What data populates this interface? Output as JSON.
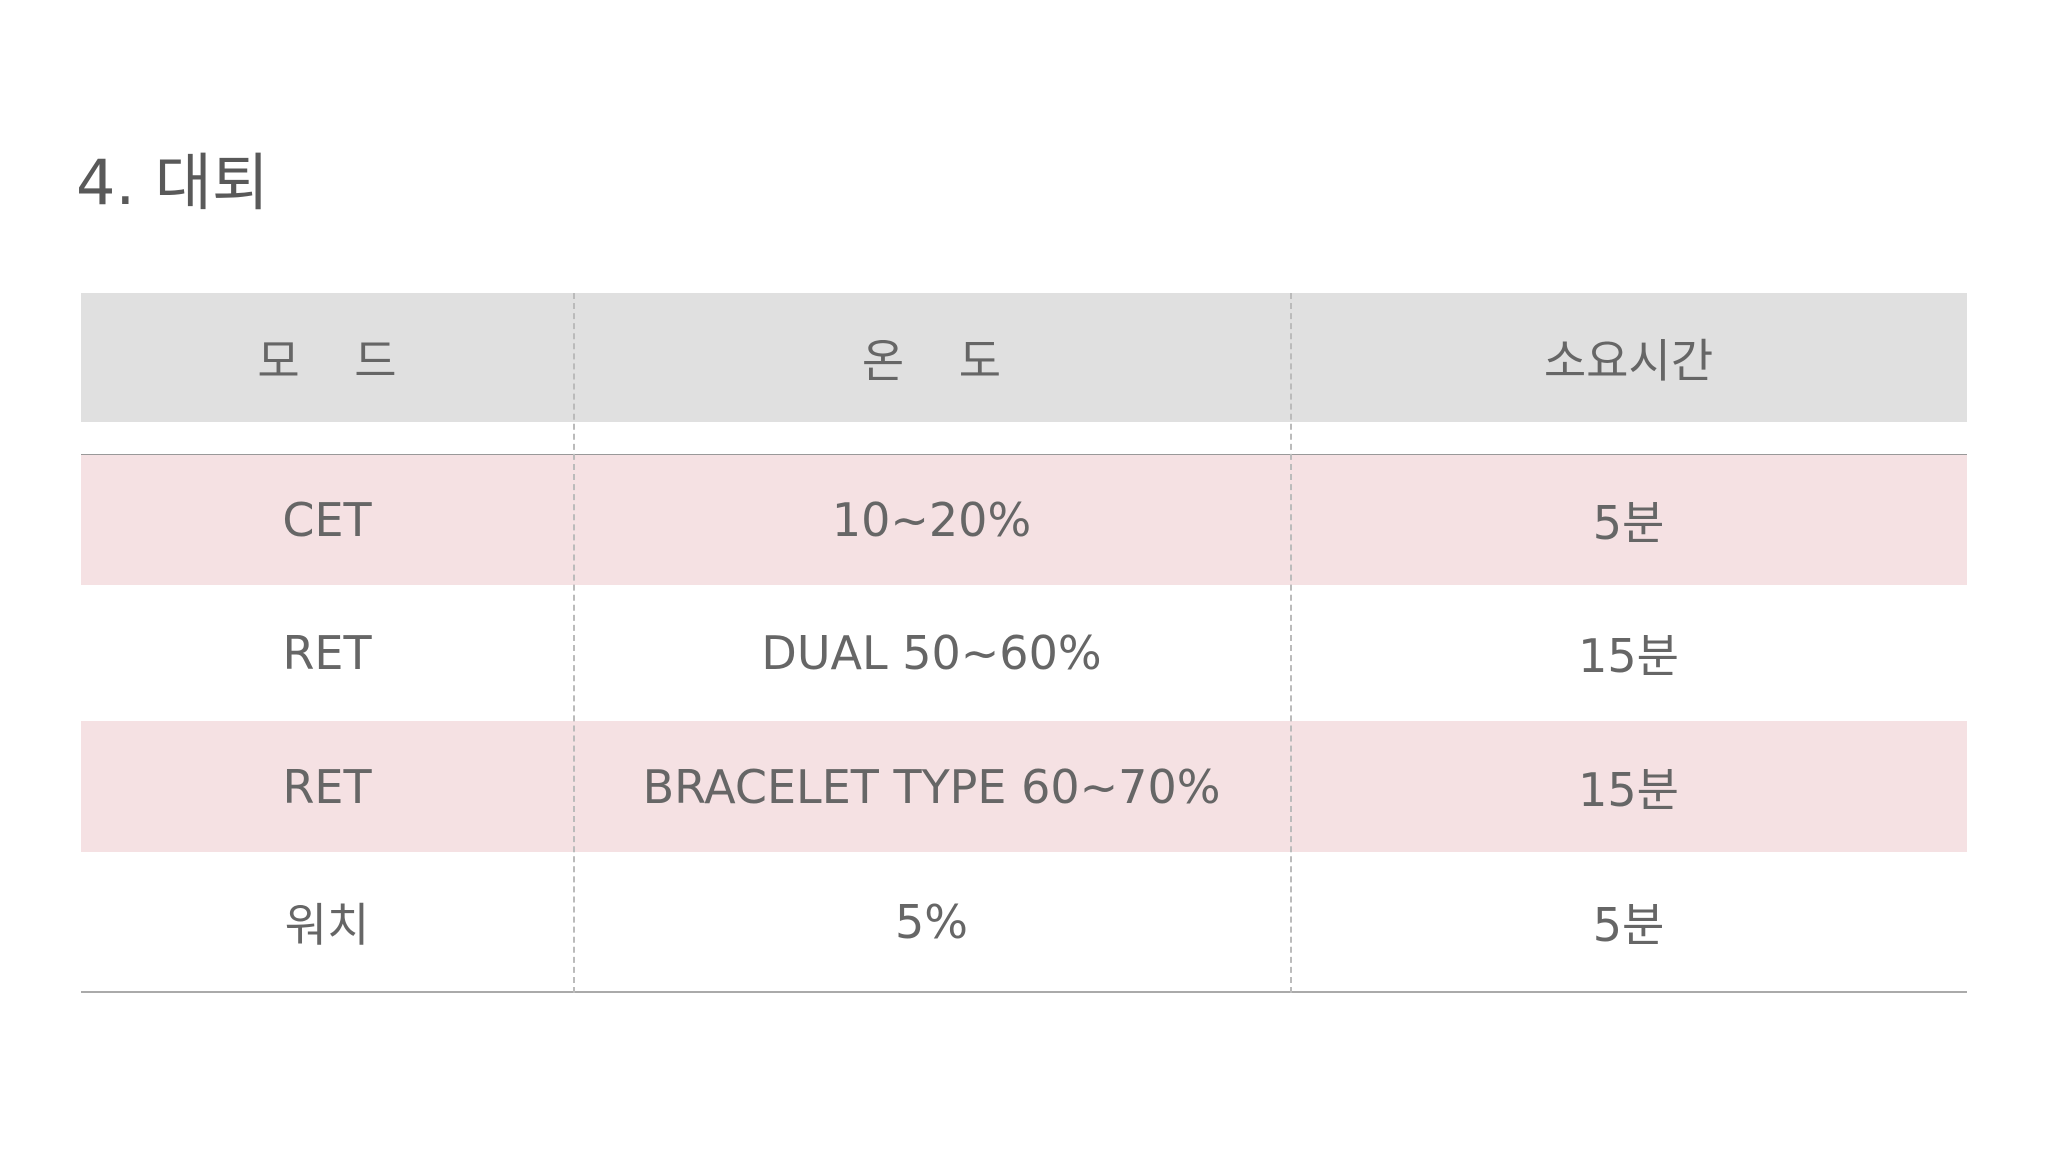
{
  "title": "4. 대퇴",
  "table": {
    "header": [
      "모 드",
      "온 도",
      "소요시간"
    ],
    "rows": [
      [
        "CET",
        "10~20%",
        "5분"
      ],
      [
        "RET",
        "DUAL 50~60%",
        "15분"
      ],
      [
        "RET",
        "BRACELET TYPE 60~70%",
        "15분"
      ],
      [
        "워치",
        "5%",
        "5분"
      ]
    ]
  }
}
